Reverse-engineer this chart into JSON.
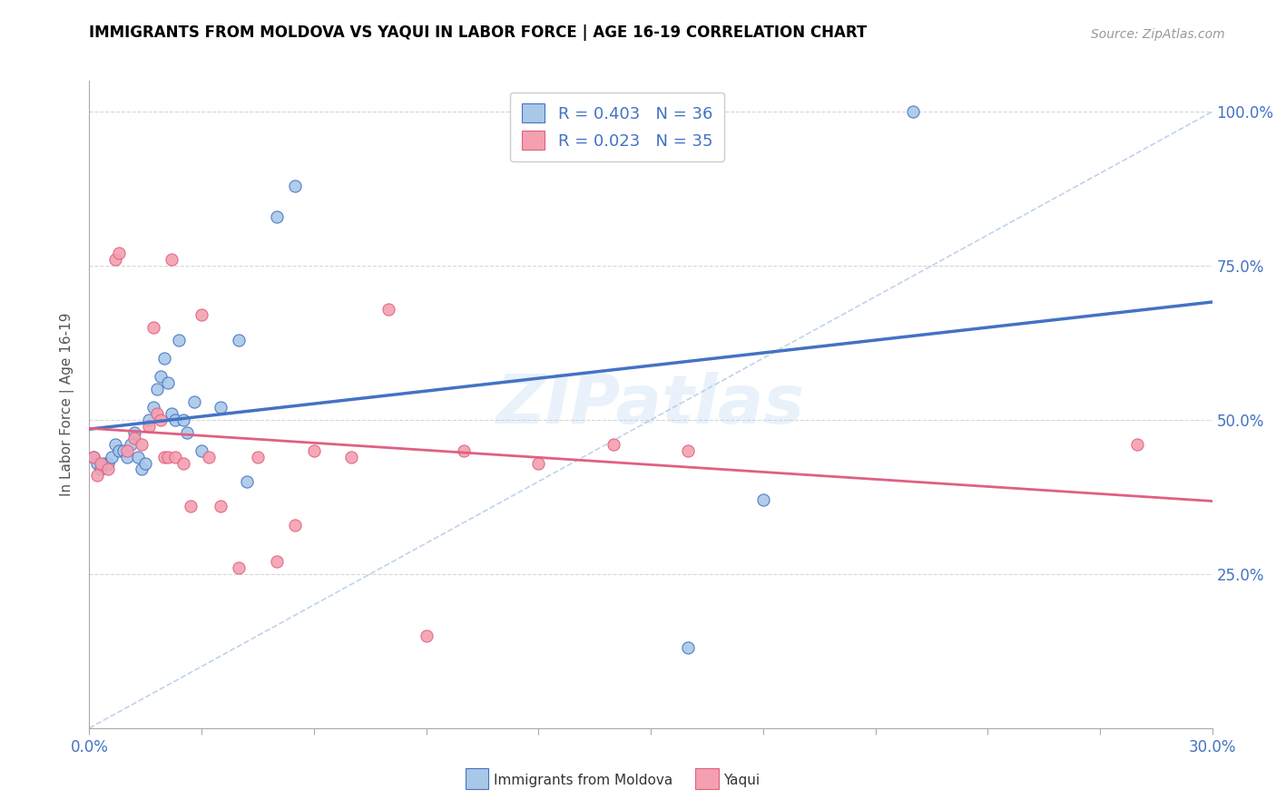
{
  "title": "IMMIGRANTS FROM MOLDOVA VS YAQUI IN LABOR FORCE | AGE 16-19 CORRELATION CHART",
  "source": "Source: ZipAtlas.com",
  "ylabel": "In Labor Force | Age 16-19",
  "xlim": [
    0.0,
    0.3
  ],
  "ylim": [
    0.0,
    1.05
  ],
  "x_ticks": [
    0.0,
    0.03,
    0.06,
    0.09,
    0.12,
    0.15,
    0.18,
    0.21,
    0.24,
    0.27,
    0.3
  ],
  "y_ticks": [
    0.0,
    0.25,
    0.5,
    0.75,
    1.0
  ],
  "color_moldova": "#a8c8e8",
  "color_yaqui": "#f4a0b0",
  "color_moldova_line": "#4472c4",
  "color_yaqui_line": "#e06080",
  "color_diag": "#b0c8e8",
  "background_color": "#ffffff",
  "moldova_x": [
    0.001,
    0.002,
    0.003,
    0.004,
    0.005,
    0.006,
    0.007,
    0.008,
    0.009,
    0.01,
    0.011,
    0.012,
    0.013,
    0.014,
    0.015,
    0.016,
    0.017,
    0.018,
    0.019,
    0.02,
    0.021,
    0.022,
    0.023,
    0.024,
    0.025,
    0.026,
    0.028,
    0.03,
    0.035,
    0.04,
    0.042,
    0.05,
    0.055,
    0.16,
    0.18,
    0.22
  ],
  "moldova_y": [
    0.44,
    0.43,
    0.42,
    0.43,
    0.43,
    0.44,
    0.46,
    0.45,
    0.45,
    0.44,
    0.46,
    0.48,
    0.44,
    0.42,
    0.43,
    0.5,
    0.52,
    0.55,
    0.57,
    0.6,
    0.56,
    0.51,
    0.5,
    0.63,
    0.5,
    0.48,
    0.53,
    0.45,
    0.52,
    0.63,
    0.4,
    0.83,
    0.88,
    0.13,
    0.37,
    1.0
  ],
  "yaqui_x": [
    0.001,
    0.002,
    0.003,
    0.005,
    0.007,
    0.008,
    0.01,
    0.012,
    0.014,
    0.016,
    0.017,
    0.018,
    0.019,
    0.02,
    0.021,
    0.022,
    0.023,
    0.025,
    0.027,
    0.03,
    0.032,
    0.035,
    0.04,
    0.045,
    0.05,
    0.055,
    0.06,
    0.07,
    0.08,
    0.09,
    0.1,
    0.12,
    0.14,
    0.16,
    0.28
  ],
  "yaqui_y": [
    0.44,
    0.41,
    0.43,
    0.42,
    0.76,
    0.77,
    0.45,
    0.47,
    0.46,
    0.49,
    0.65,
    0.51,
    0.5,
    0.44,
    0.44,
    0.76,
    0.44,
    0.43,
    0.36,
    0.67,
    0.44,
    0.36,
    0.26,
    0.44,
    0.27,
    0.33,
    0.45,
    0.44,
    0.68,
    0.15,
    0.45,
    0.43,
    0.46,
    0.45,
    0.46
  ]
}
